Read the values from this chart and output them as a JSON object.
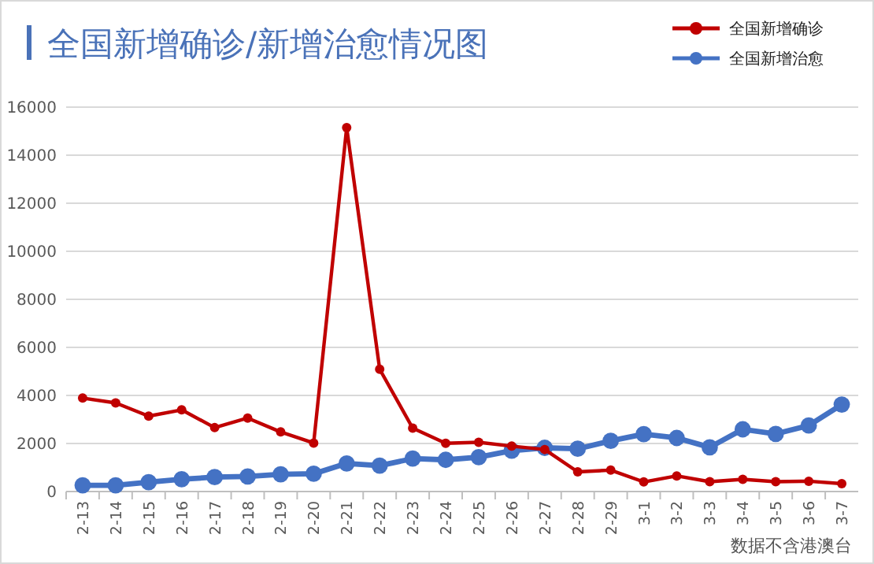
{
  "chart_data": {
    "type": "line",
    "title": "全国新增确诊/新增治愈情况图",
    "categories": [
      "2-13",
      "2-14",
      "2-15",
      "2-16",
      "2-17",
      "2-18",
      "2-19",
      "2-20",
      "2-21",
      "2-22",
      "2-23",
      "2-24",
      "2-25",
      "2-26",
      "2-27",
      "2-28",
      "2-29",
      "3-1",
      "3-2",
      "3-3",
      "3-4",
      "3-5",
      "3-6",
      "3-7"
    ],
    "series": [
      {
        "name": "全国新增确诊",
        "color": "#c00000",
        "values": [
          3890,
          3690,
          3140,
          3400,
          2660,
          3060,
          2480,
          2020,
          15150,
          5090,
          2640,
          2010,
          2050,
          1890,
          1750,
          820,
          890,
          400,
          650,
          410,
          510,
          410,
          430,
          330
        ]
      },
      {
        "name": "全国新增治愈",
        "color": "#4472c4",
        "values": [
          260,
          260,
          390,
          510,
          600,
          630,
          720,
          740,
          1170,
          1080,
          1370,
          1320,
          1430,
          1700,
          1820,
          1780,
          2110,
          2390,
          2230,
          1840,
          2590,
          2400,
          2750,
          3620
        ]
      }
    ],
    "ylim": [
      0,
      16000
    ],
    "yticks": [
      0,
      2000,
      4000,
      6000,
      8000,
      10000,
      12000,
      14000,
      16000
    ],
    "grid": "y",
    "legend": "top right",
    "marker": "circle",
    "line_style": "solid",
    "annotations": [
      "数据不含港澳台"
    ]
  }
}
